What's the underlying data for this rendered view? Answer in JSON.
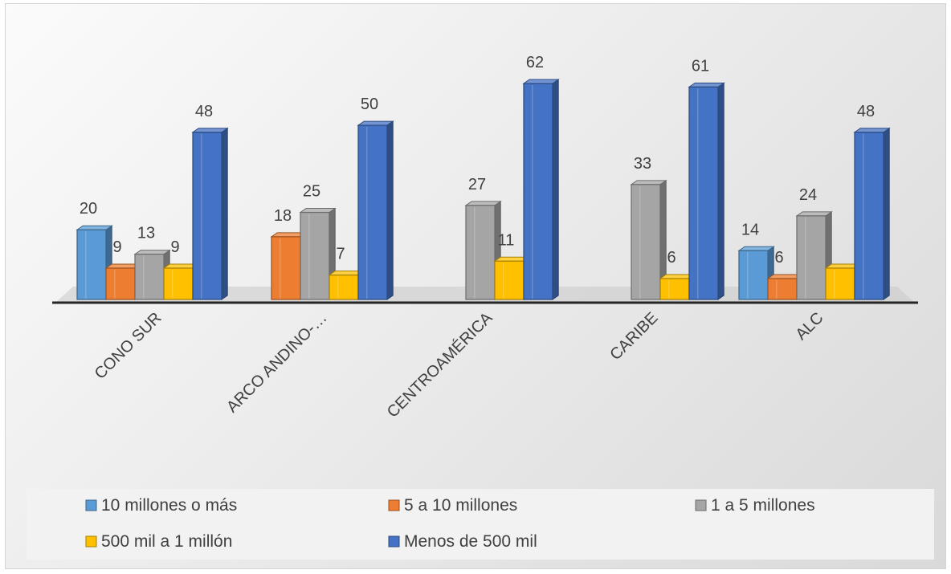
{
  "chart_data": {
    "type": "bar",
    "categories": [
      "CONO SUR",
      "ARCO ANDINO-…",
      "CENTROAMÉRICA",
      "CARIBE",
      "ALC"
    ],
    "series": [
      {
        "name": "10 millones o más",
        "color": "#5b9bd5",
        "values": [
          20,
          null,
          null,
          null,
          14
        ],
        "labels": [
          "20",
          "",
          "",
          "",
          "14"
        ]
      },
      {
        "name": "5 a 10 millones",
        "color": "#ed7d31",
        "values": [
          9,
          18,
          null,
          null,
          6
        ],
        "labels": [
          "9",
          "18",
          "",
          "",
          "6"
        ]
      },
      {
        "name": "1 a 5 millones",
        "color": "#a5a5a5",
        "values": [
          13,
          25,
          27,
          33,
          24
        ],
        "labels": [
          "13",
          "25",
          "27",
          "33",
          "24"
        ]
      },
      {
        "name": "500 mil a 1 millón",
        "color": "#ffc000",
        "values": [
          9,
          7,
          11,
          6,
          9
        ],
        "labels": [
          "9",
          "7",
          "11",
          "6",
          ""
        ]
      },
      {
        "name": "Menos de 500 mil",
        "color": "#4472c4",
        "values": [
          48,
          50,
          62,
          61,
          48
        ],
        "labels": [
          "48",
          "50",
          "62",
          "61",
          "48"
        ]
      }
    ],
    "ylim": [
      0,
      65
    ],
    "grid": false,
    "legend": "bottom",
    "style": "3d-clustered-column"
  }
}
